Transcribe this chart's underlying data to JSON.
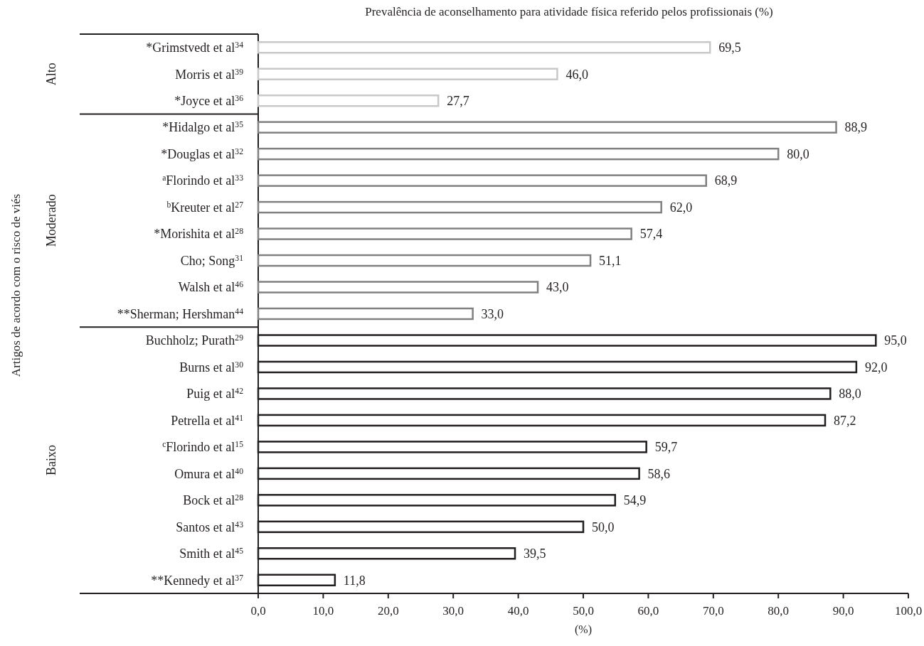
{
  "chart_data": {
    "type": "bar",
    "orientation": "horizontal",
    "title": "Prevalência de aconselhamento para atividade física referido pelos profissionais (%)",
    "xlabel": "(%)",
    "categories": [
      "*Grimstvedt et al$^{34}$",
      "Morris et al$^{39}$",
      "*Joyce et al$^{36}$",
      "*Hidalgo et al$^{35}$",
      "*Douglas et al$^{32}$",
      "$^{a}$Florindo et al$^{33}$",
      "$^{b}$Kreuter et al$^{27}$",
      "*Morishita et al$^{28}$",
      "Cho; Song$^{31}$",
      "Walsh et al$^{46}$",
      "**Sherman; Hershman$^{44}$",
      "Buchholz; Purath$^{29}$",
      "Burns et al$^{30}$",
      "Puig et al$^{42}$",
      "Petrella et al$^{41}$",
      "$^{c}$Florindo et al$^{15}$",
      "Omura et al$^{40}$",
      "Bock et al$^{28}$",
      "Santos et al$^{43}$",
      "Smith et al$^{45}$",
      "**Kennedy et al$^{37}$"
    ],
    "series": [
      {
        "color": "#c8c8c8",
        "values": [
          69.5,
          46.0,
          27.7,
          null,
          null,
          null,
          null,
          null,
          null,
          null,
          null,
          null,
          null,
          null,
          null,
          null,
          null,
          null,
          null,
          null,
          null
        ],
        "value_labels": [
          "69,5",
          "46,0",
          "27,7",
          null,
          null,
          null,
          null,
          null,
          null,
          null,
          null,
          null,
          null,
          null,
          null,
          null,
          null,
          null,
          null,
          null,
          null
        ]
      },
      {
        "color": "#808080",
        "values": [
          null,
          null,
          null,
          88.9,
          80.0,
          68.9,
          62.0,
          57.4,
          51.1,
          43.0,
          33.0,
          null,
          null,
          null,
          null,
          null,
          null,
          null,
          null,
          null,
          null
        ],
        "value_labels": [
          null,
          null,
          null,
          "88,9",
          "80,0",
          "68,9",
          "62,0",
          "57,4",
          "51,1",
          "43,0",
          "33,0",
          null,
          null,
          null,
          null,
          null,
          null,
          null,
          null,
          null,
          null
        ]
      },
      {
        "color": "#231f20",
        "values": [
          null,
          null,
          null,
          null,
          null,
          null,
          null,
          null,
          null,
          null,
          null,
          95.0,
          92.0,
          88.0,
          87.2,
          59.7,
          58.6,
          54.9,
          50.0,
          39.5,
          11.8
        ],
        "value_labels": [
          null,
          null,
          null,
          null,
          null,
          null,
          null,
          null,
          null,
          null,
          null,
          "95,0",
          "92,0",
          "88,0",
          "87,2",
          "59,7",
          "58,6",
          "54,9",
          "50,0",
          "39,5",
          "11,8"
        ]
      }
    ],
    "xlim": [
      0,
      100
    ],
    "xticks": [
      {
        "value": 0,
        "label": "0,0"
      },
      {
        "value": 10,
        "label": "10,0"
      },
      {
        "value": 20,
        "label": "20,0"
      },
      {
        "value": 30,
        "label": "30,0"
      },
      {
        "value": 40,
        "label": "40,0"
      },
      {
        "value": 50,
        "label": "50,0"
      },
      {
        "value": 60,
        "label": "60,0"
      },
      {
        "value": 70,
        "label": "70,0"
      },
      {
        "value": 80,
        "label": "80,0"
      },
      {
        "value": 90,
        "label": "90,0"
      },
      {
        "value": 100,
        "label": "100,0"
      }
    ],
    "annotations": [
      "Alto",
      "Moderado",
      "Baixo",
      "Artigos de acordo com o risco de viés"
    ],
    "grid": false,
    "legend": false
  }
}
